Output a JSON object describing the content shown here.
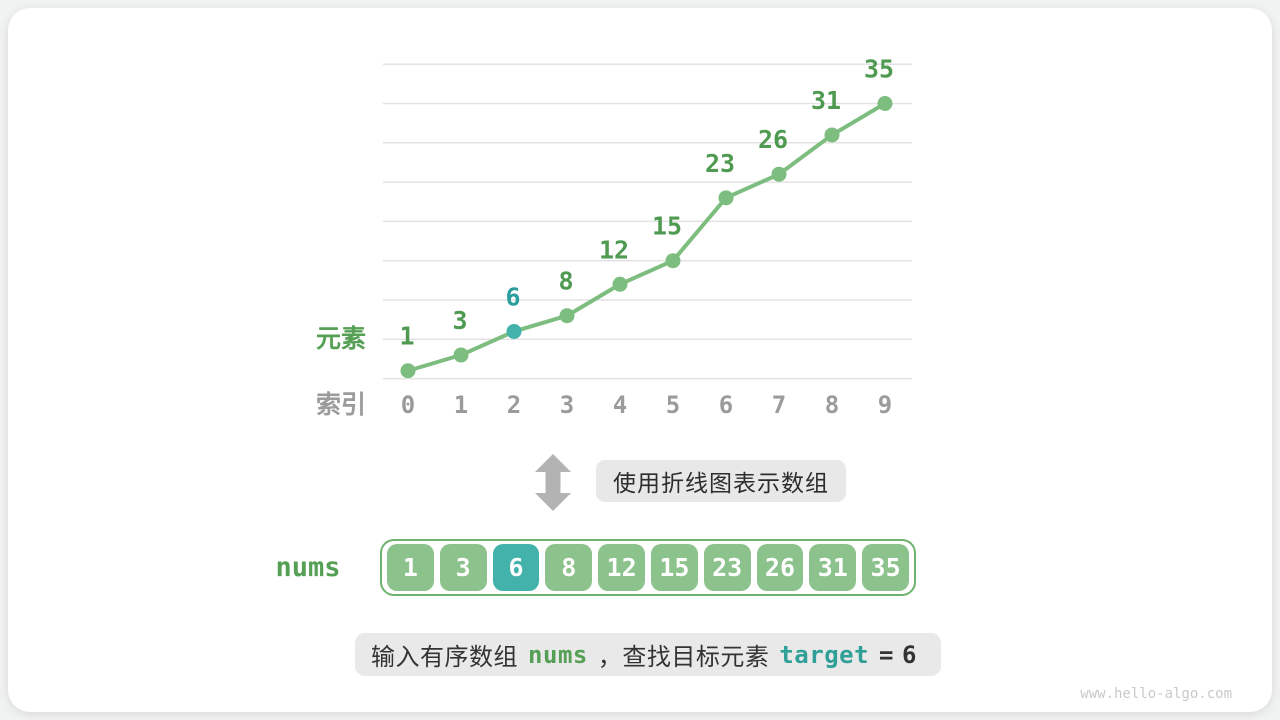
{
  "chart_data": {
    "type": "line",
    "title": "",
    "x": [
      0,
      1,
      2,
      3,
      4,
      5,
      6,
      7,
      8,
      9
    ],
    "values": [
      1,
      3,
      6,
      8,
      12,
      15,
      23,
      26,
      31,
      35
    ],
    "highlight_index": 2,
    "highlight_value": 6,
    "ylabel": "元素",
    "xlabel": "索引",
    "ylim": [
      0,
      40
    ],
    "gridline_step": 5,
    "grid": "horizontal-only",
    "legend": "none"
  },
  "transform_note": {
    "icon": "up-down-arrow",
    "label": "使用折线图表示数组"
  },
  "array": {
    "name": "nums",
    "values": [
      1,
      3,
      6,
      8,
      12,
      15,
      23,
      26,
      31,
      35
    ],
    "highlight_index": 2
  },
  "caption": {
    "prefix": "输入有序数组",
    "nums_token": "nums",
    "middle": "，查找目标元素",
    "target_token": "target",
    "equals": "=",
    "target_value": "6"
  },
  "page": {
    "watermark": "www.hello-algo.com"
  },
  "colors": {
    "line_green": "#7dbd7f",
    "value_label_green": "#4f9a51",
    "axis_label_green": "#55a055",
    "axis_gray": "#9b9b9b",
    "teal_point": "#43b2ab",
    "teal_label": "#2a9d9d",
    "grid_gray": "#e3e3e3",
    "cell_green": "#8cc28c",
    "cell_teal": "#43b2ab",
    "array_border_green": "#6fb26f",
    "box_gray": "#e8e8e9",
    "arrow_gray": "#b3b3b3",
    "nums_green": "#55a055",
    "target_teal": "#2f9f98",
    "watermark_gray": "#c9c9c9"
  }
}
